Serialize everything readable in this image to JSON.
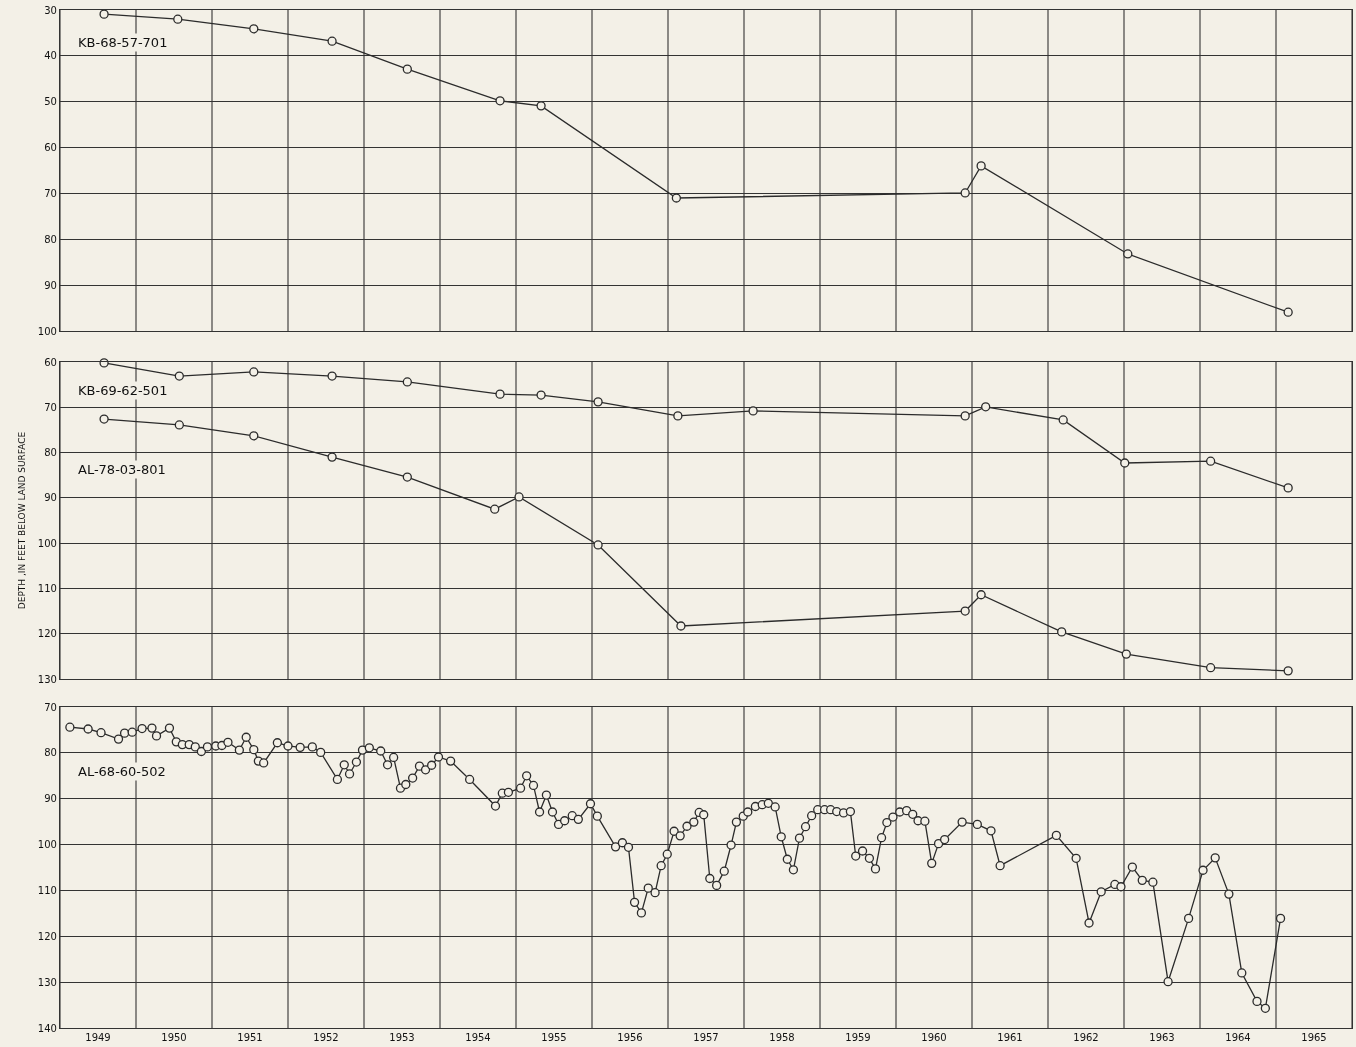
{
  "chart_data": [
    {
      "type": "line",
      "xlim": [
        1949,
        1966
      ],
      "ylim": [
        100,
        30
      ],
      "yticks": [
        30,
        40,
        50,
        60,
        70,
        80,
        90,
        100
      ],
      "grid": true,
      "marker": "circle",
      "legend": false,
      "tick_labels": "y",
      "xticks": [
        {
          "value": 1949,
          "label": null
        },
        {
          "value": 1950,
          "label": null
        },
        {
          "value": 1951,
          "label": null
        },
        {
          "value": 1952,
          "label": null
        },
        {
          "value": 1953,
          "label": null
        },
        {
          "value": 1954,
          "label": null
        },
        {
          "value": 1955,
          "label": null
        },
        {
          "value": 1956,
          "label": null
        },
        {
          "value": 1957,
          "label": null
        },
        {
          "value": 1958,
          "label": null
        },
        {
          "value": 1959,
          "label": null
        },
        {
          "value": 1960,
          "label": null
        },
        {
          "value": 1961,
          "label": null
        },
        {
          "value": 1962,
          "label": null
        },
        {
          "value": 1963,
          "label": null
        },
        {
          "value": 1964,
          "label": null
        },
        {
          "value": 1965,
          "label": null
        },
        {
          "value": 1966,
          "label": null
        }
      ],
      "series": [
        {
          "name": "KB-68-57-701",
          "color": "#2b2b2b",
          "x": [
            1949.58,
            1950.55,
            1951.55,
            1952.58,
            1953.57,
            1954.79,
            1955.33,
            1957.11,
            1960.91,
            1961.12,
            1963.05,
            1965.16
          ],
          "values": [
            30.9,
            32.0,
            34.1,
            36.8,
            42.9,
            49.8,
            50.9,
            71.0,
            69.9,
            64.0,
            83.2,
            95.9
          ]
        }
      ]
    },
    {
      "type": "line",
      "ylabel": "DEPTH ,IN FEET BELOW LAND SURFACE",
      "xlim": [
        1949,
        1966
      ],
      "ylim": [
        130,
        60
      ],
      "yticks": [
        60,
        70,
        80,
        90,
        100,
        110,
        120,
        130
      ],
      "grid": true,
      "marker": "circle",
      "legend": false,
      "tick_labels": "y",
      "xticks": [
        {
          "value": 1949,
          "label": null
        },
        {
          "value": 1950,
          "label": null
        },
        {
          "value": 1951,
          "label": null
        },
        {
          "value": 1952,
          "label": null
        },
        {
          "value": 1953,
          "label": null
        },
        {
          "value": 1954,
          "label": null
        },
        {
          "value": 1955,
          "label": null
        },
        {
          "value": 1956,
          "label": null
        },
        {
          "value": 1957,
          "label": null
        },
        {
          "value": 1958,
          "label": null
        },
        {
          "value": 1959,
          "label": null
        },
        {
          "value": 1960,
          "label": null
        },
        {
          "value": 1961,
          "label": null
        },
        {
          "value": 1962,
          "label": null
        },
        {
          "value": 1963,
          "label": null
        },
        {
          "value": 1964,
          "label": null
        },
        {
          "value": 1965,
          "label": null
        },
        {
          "value": 1966,
          "label": null
        }
      ],
      "series": [
        {
          "name": "KB-69-62-501",
          "color": "#2b2b2b",
          "x": [
            1949.58,
            1950.57,
            1951.55,
            1952.58,
            1953.57,
            1954.79,
            1955.33,
            1956.08,
            1957.13,
            1958.12,
            1960.91,
            1961.18,
            1962.2,
            1963.01,
            1964.14,
            1965.16
          ],
          "values": [
            60.2,
            63.1,
            62.2,
            63.1,
            64.4,
            67.1,
            67.3,
            68.8,
            71.9,
            70.8,
            71.9,
            69.9,
            72.8,
            82.3,
            81.9,
            87.8
          ]
        },
        {
          "name": "AL-78-03-801",
          "color": "#2b2b2b",
          "x": [
            1949.58,
            1950.57,
            1951.55,
            1952.58,
            1953.57,
            1954.72,
            1955.04,
            1956.08,
            1957.17,
            1960.91,
            1961.12,
            1962.18,
            1963.03,
            1964.14,
            1965.16
          ],
          "values": [
            72.6,
            73.9,
            76.3,
            81.0,
            85.4,
            92.5,
            89.8,
            100.4,
            118.3,
            115.0,
            111.4,
            119.6,
            124.5,
            127.5,
            128.2
          ]
        }
      ]
    },
    {
      "type": "line",
      "xlim": [
        1949,
        1966
      ],
      "ylim": [
        140,
        70
      ],
      "yticks": [
        70,
        80,
        90,
        100,
        110,
        120,
        130,
        140
      ],
      "grid": true,
      "marker": "circle",
      "legend": false,
      "xticks": [
        {
          "value": 1949,
          "label": null
        },
        {
          "value": 1949.5,
          "label": "1949"
        },
        {
          "value": 1950,
          "label": null
        },
        {
          "value": 1950.5,
          "label": "1950"
        },
        {
          "value": 1951,
          "label": null
        },
        {
          "value": 1951.5,
          "label": "1951"
        },
        {
          "value": 1952,
          "label": null
        },
        {
          "value": 1952.5,
          "label": "1952"
        },
        {
          "value": 1953,
          "label": null
        },
        {
          "value": 1953.5,
          "label": "1953"
        },
        {
          "value": 1954,
          "label": null
        },
        {
          "value": 1954.5,
          "label": "1954"
        },
        {
          "value": 1955,
          "label": null
        },
        {
          "value": 1955.5,
          "label": "1955"
        },
        {
          "value": 1956,
          "label": null
        },
        {
          "value": 1956.5,
          "label": "1956"
        },
        {
          "value": 1957,
          "label": null
        },
        {
          "value": 1957.5,
          "label": "1957"
        },
        {
          "value": 1958,
          "label": null
        },
        {
          "value": 1958.5,
          "label": "1958"
        },
        {
          "value": 1959,
          "label": null
        },
        {
          "value": 1959.5,
          "label": "1959"
        },
        {
          "value": 1960,
          "label": null
        },
        {
          "value": 1960.5,
          "label": "1960"
        },
        {
          "value": 1961,
          "label": null
        },
        {
          "value": 1961.5,
          "label": "1961"
        },
        {
          "value": 1962,
          "label": null
        },
        {
          "value": 1962.5,
          "label": "1962"
        },
        {
          "value": 1963,
          "label": null
        },
        {
          "value": 1963.5,
          "label": "1963"
        },
        {
          "value": 1964,
          "label": null
        },
        {
          "value": 1964.5,
          "label": "1964"
        },
        {
          "value": 1965,
          "label": null
        },
        {
          "value": 1965.5,
          "label": "1965"
        },
        {
          "value": 1966,
          "label": null
        }
      ],
      "series": [
        {
          "name": "AL-68-60-502",
          "color": "#2b2b2b",
          "x": [
            1949.13,
            1949.37,
            1949.54,
            1949.77,
            1949.85,
            1949.95,
            1950.08,
            1950.21,
            1950.27,
            1950.44,
            1950.53,
            1950.61,
            1950.7,
            1950.78,
            1950.86,
            1950.94,
            1951.05,
            1951.13,
            1951.21,
            1951.36,
            1951.45,
            1951.55,
            1951.61,
            1951.68,
            1951.86,
            1952.0,
            1952.16,
            1952.32,
            1952.43,
            1952.65,
            1952.74,
            1952.81,
            1952.9,
            1952.98,
            1953.07,
            1953.22,
            1953.31,
            1953.39,
            1953.48,
            1953.55,
            1953.64,
            1953.73,
            1953.81,
            1953.89,
            1953.98,
            1954.14,
            1954.39,
            1954.73,
            1954.82,
            1954.9,
            1955.06,
            1955.14,
            1955.23,
            1955.31,
            1955.4,
            1955.48,
            1955.56,
            1955.64,
            1955.74,
            1955.82,
            1955.98,
            1956.07,
            1956.31,
            1956.4,
            1956.48,
            1956.56,
            1956.65,
            1956.74,
            1956.83,
            1956.91,
            1956.99,
            1957.08,
            1957.16,
            1957.25,
            1957.34,
            1957.41,
            1957.47,
            1957.55,
            1957.64,
            1957.74,
            1957.83,
            1957.9,
            1957.99,
            1958.05,
            1958.15,
            1958.24,
            1958.32,
            1958.41,
            1958.49,
            1958.57,
            1958.65,
            1958.73,
            1958.81,
            1958.89,
            1958.97,
            1959.06,
            1959.14,
            1959.22,
            1959.31,
            1959.4,
            1959.47,
            1959.56,
            1959.65,
            1959.73,
            1959.81,
            1959.88,
            1959.96,
            1960.05,
            1960.14,
            1960.22,
            1960.29,
            1960.38,
            1960.47,
            1960.56,
            1960.64,
            1960.87,
            1961.07,
            1961.25,
            1961.37,
            1962.11,
            1962.37,
            1962.54,
            1962.7,
            1962.88,
            1962.96,
            1963.11,
            1963.24,
            1963.38,
            1963.58,
            1963.85,
            1964.04,
            1964.2,
            1964.38,
            1964.55,
            1964.75,
            1964.86,
            1965.06
          ],
          "values": [
            74.4,
            74.8,
            75.6,
            77.0,
            75.7,
            75.5,
            74.7,
            74.6,
            76.3,
            74.6,
            77.6,
            78.2,
            78.2,
            78.7,
            79.7,
            78.7,
            78.5,
            78.4,
            77.7,
            79.4,
            76.6,
            79.3,
            81.8,
            82.2,
            77.8,
            78.5,
            78.8,
            78.7,
            79.9,
            85.8,
            82.6,
            84.6,
            82.0,
            79.4,
            78.9,
            79.6,
            82.6,
            81.0,
            87.7,
            86.9,
            85.5,
            82.9,
            83.7,
            82.7,
            80.9,
            81.8,
            85.8,
            91.6,
            88.8,
            88.6,
            87.7,
            85.0,
            87.1,
            92.9,
            89.2,
            92.9,
            95.6,
            94.8,
            93.7,
            94.5,
            91.1,
            93.8,
            100.5,
            99.6,
            100.6,
            112.6,
            114.9,
            109.5,
            110.5,
            104.6,
            102.1,
            97.1,
            98.1,
            96.0,
            95.1,
            93.0,
            93.5,
            107.4,
            108.9,
            105.8,
            100.1,
            95.1,
            93.8,
            92.9,
            91.7,
            91.3,
            91.0,
            91.8,
            98.3,
            103.2,
            105.5,
            98.6,
            96.1,
            93.7,
            92.4,
            92.4,
            92.4,
            92.8,
            93.1,
            92.8,
            102.5,
            101.4,
            103.0,
            105.3,
            98.5,
            95.2,
            94.0,
            92.9,
            92.6,
            93.4,
            94.8,
            94.9,
            104.1,
            99.8,
            98.9,
            95.1,
            95.6,
            97.0,
            104.6,
            98.0,
            103.0,
            117.1,
            110.3,
            108.7,
            109.2,
            104.9,
            107.8,
            108.2,
            129.9,
            116.1,
            105.6,
            102.9,
            110.8,
            128.0,
            134.2,
            135.7,
            116.1
          ]
        }
      ]
    }
  ]
}
